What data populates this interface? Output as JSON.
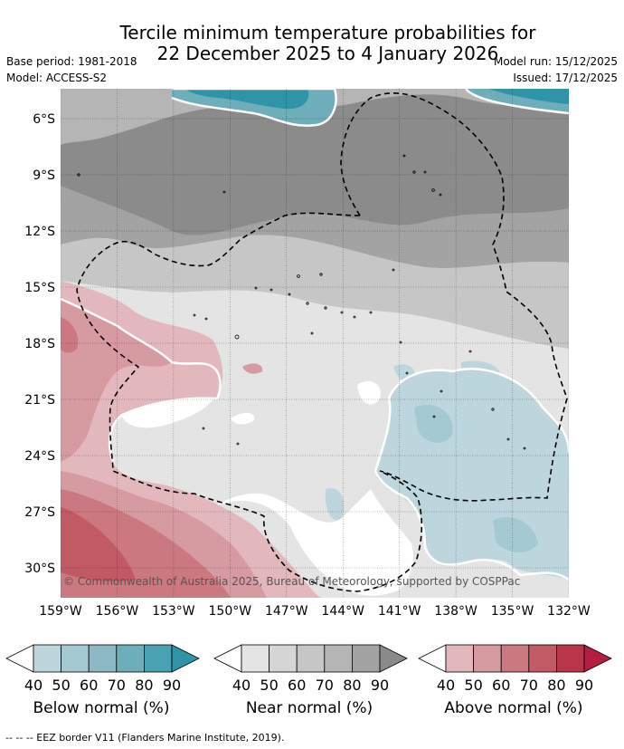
{
  "title": {
    "line1": "Tercile minimum temperature probabilities for",
    "line2": "22 December 2025 to 4 January 2026"
  },
  "meta": {
    "base_period": "Base period: 1981-2018",
    "model": "Model: ACCESS-S2",
    "model_run": "Model run: 15/12/2025",
    "issued": "Issued: 17/12/2025"
  },
  "map": {
    "lat_ticks": [
      "6°S",
      "9°S",
      "12°S",
      "15°S",
      "18°S",
      "21°S",
      "24°S",
      "27°S",
      "30°S"
    ],
    "lon_ticks": [
      "159°W",
      "156°W",
      "153°W",
      "150°W",
      "147°W",
      "144°W",
      "141°W",
      "138°W",
      "135°W",
      "132°W"
    ],
    "credit": "© Commonwealth of Australia 2025, Bureau of Meteorology, supported by COSPPac"
  },
  "legend": {
    "below": {
      "label": "Below normal (%)",
      "ticks": [
        "40",
        "50",
        "60",
        "70",
        "80",
        "90"
      ],
      "colors": [
        "#ffffff",
        "#bdd6dd",
        "#a5c9d1",
        "#8bbac5",
        "#6eaebb",
        "#4aa1b1",
        "#3094a8"
      ]
    },
    "near": {
      "label": "Near normal (%)",
      "ticks": [
        "40",
        "50",
        "60",
        "70",
        "80",
        "90"
      ],
      "colors": [
        "#ffffff",
        "#e4e4e4",
        "#d5d5d5",
        "#c6c6c6",
        "#b5b5b5",
        "#a3a3a3",
        "#8a8a8a"
      ]
    },
    "above": {
      "label": "Above normal (%)",
      "ticks": [
        "40",
        "50",
        "60",
        "70",
        "80",
        "90"
      ],
      "colors": [
        "#ffffff",
        "#e3b8bd",
        "#d69aa1",
        "#cb7880",
        "#c25a65",
        "#b9364a",
        "#b41f3f"
      ]
    }
  },
  "footer": "--  --  -- EEZ border V11 (Flanders Marine Institute, 2019)."
}
